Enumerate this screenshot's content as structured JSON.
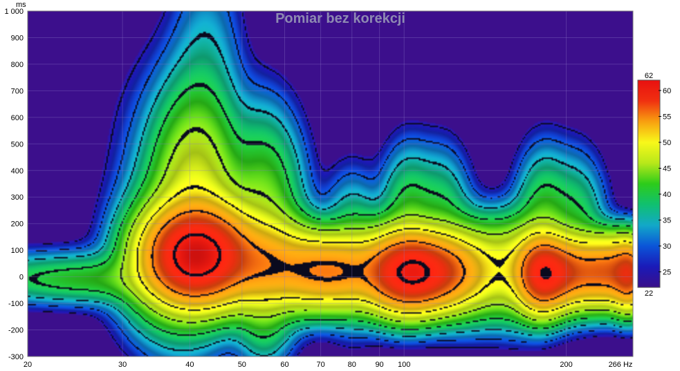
{
  "chart_data": {
    "type": "heatmap",
    "title": "Pomiar bez korekcji",
    "ylabel": "ms",
    "x_unit": "Hz",
    "x_scale": "log",
    "xlim": [
      20,
      266
    ],
    "ylim": [
      -300,
      1000
    ],
    "x_ticks": [
      20,
      30,
      40,
      50,
      60,
      70,
      80,
      90,
      100,
      200,
      266
    ],
    "x_tick_labels": [
      "20",
      "30",
      "40",
      "50",
      "60",
      "70",
      "80",
      "90",
      "100",
      "200",
      "266 Hz"
    ],
    "y_ticks": [
      -300,
      -200,
      -100,
      0,
      100,
      200,
      300,
      400,
      500,
      600,
      700,
      800,
      900,
      1000
    ],
    "y_tick_labels": [
      "-300",
      "-200",
      "-100",
      "0",
      "100",
      "200",
      "300",
      "400",
      "500",
      "600",
      "700",
      "800",
      "900",
      "1 000"
    ],
    "colorbar": {
      "min": 22,
      "max": 62,
      "ticks": [
        25,
        30,
        35,
        40,
        45,
        50,
        55,
        60
      ],
      "min_label": "22",
      "max_label": "62",
      "colors": [
        "#3a0f8a",
        "#1a1ab8",
        "#0b55d8",
        "#12a8c8",
        "#10c070",
        "#2dcc1a",
        "#b8e81a",
        "#f8f81a",
        "#f8a010",
        "#f03010",
        "#e81010"
      ]
    },
    "background_color": "#3c0f8c",
    "peaks": [
      {
        "f": 20,
        "t": 0,
        "v": 32,
        "wf": 0.12,
        "wt": 60
      },
      {
        "f": 22,
        "t": 0,
        "v": 35,
        "wf": 0.13,
        "wt": 50
      },
      {
        "f": 26,
        "t": -20,
        "v": 36,
        "wf": 0.11,
        "wt": 45
      },
      {
        "f": 30,
        "t": 0,
        "v": 36,
        "wf": 0.09,
        "wt": 60
      },
      {
        "f": 34,
        "t": 400,
        "v": 28,
        "wf": 0.06,
        "wt": 300
      },
      {
        "f": 36,
        "t": 60,
        "v": 44,
        "wf": 0.05,
        "wt": 150
      },
      {
        "f": 38,
        "t": 200,
        "v": 36,
        "wf": 0.05,
        "wt": 250
      },
      {
        "f": 41,
        "t": 80,
        "v": 61,
        "wf": 0.05,
        "wt": 95
      },
      {
        "f": 41,
        "t": 280,
        "v": 48,
        "wf": 0.045,
        "wt": 220
      },
      {
        "f": 42.5,
        "t": 650,
        "v": 34,
        "wf": 0.04,
        "wt": 320
      },
      {
        "f": 44,
        "t": 850,
        "v": 27,
        "wf": 0.035,
        "wt": 220
      },
      {
        "f": 47,
        "t": 100,
        "v": 46,
        "wf": 0.035,
        "wt": 120
      },
      {
        "f": 54,
        "t": 50,
        "v": 53,
        "wf": 0.045,
        "wt": 90
      },
      {
        "f": 55,
        "t": 250,
        "v": 44,
        "wf": 0.04,
        "wt": 200
      },
      {
        "f": 55,
        "t": -150,
        "v": 40,
        "wf": 0.03,
        "wt": 100
      },
      {
        "f": 62,
        "t": 50,
        "v": 44,
        "wf": 0.04,
        "wt": 100
      },
      {
        "f": 66,
        "t": 20,
        "v": 38,
        "wf": 0.03,
        "wt": 80
      },
      {
        "f": 73,
        "t": 20,
        "v": 55,
        "wf": 0.06,
        "wt": 75
      },
      {
        "f": 80,
        "t": 100,
        "v": 40,
        "wf": 0.03,
        "wt": 150
      },
      {
        "f": 88,
        "t": 80,
        "v": 38,
        "wf": 0.03,
        "wt": 100
      },
      {
        "f": 95,
        "t": 0,
        "v": 48,
        "wf": 0.04,
        "wt": 80
      },
      {
        "f": 101,
        "t": 20,
        "v": 57,
        "wf": 0.04,
        "wt": 80
      },
      {
        "f": 102,
        "t": 200,
        "v": 42,
        "wf": 0.03,
        "wt": 150
      },
      {
        "f": 112,
        "t": 15,
        "v": 57,
        "wf": 0.05,
        "wt": 75
      },
      {
        "f": 118,
        "t": 200,
        "v": 40,
        "wf": 0.03,
        "wt": 150
      },
      {
        "f": 130,
        "t": 30,
        "v": 46,
        "wf": 0.04,
        "wt": 100
      },
      {
        "f": 145,
        "t": 30,
        "v": 44,
        "wf": 0.05,
        "wt": 100
      },
      {
        "f": 165,
        "t": 30,
        "v": 48,
        "wf": 0.04,
        "wt": 100
      },
      {
        "f": 180,
        "t": 10,
        "v": 58,
        "wf": 0.025,
        "wt": 75
      },
      {
        "f": 182,
        "t": 200,
        "v": 42,
        "wf": 0.03,
        "wt": 150
      },
      {
        "f": 198,
        "t": 15,
        "v": 56,
        "wf": 0.03,
        "wt": 70
      },
      {
        "f": 210,
        "t": 180,
        "v": 40,
        "wf": 0.03,
        "wt": 150
      },
      {
        "f": 222,
        "t": 15,
        "v": 52,
        "wf": 0.025,
        "wt": 70
      },
      {
        "f": 240,
        "t": 20,
        "v": 54,
        "wf": 0.025,
        "wt": 70
      },
      {
        "f": 262,
        "t": 10,
        "v": 57,
        "wf": 0.02,
        "wt": 70
      }
    ]
  }
}
